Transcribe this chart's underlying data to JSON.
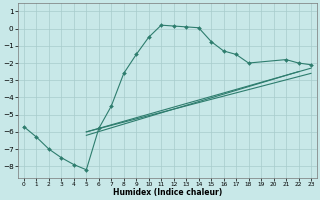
{
  "xlabel": "Humidex (Indice chaleur)",
  "xlim": [
    -0.5,
    23.5
  ],
  "ylim": [
    -8.7,
    1.5
  ],
  "xtick_vals": [
    0,
    1,
    2,
    3,
    4,
    5,
    6,
    7,
    8,
    9,
    10,
    11,
    12,
    13,
    14,
    15,
    16,
    17,
    18,
    19,
    20,
    21,
    22,
    23
  ],
  "ytick_vals": [
    1,
    0,
    -1,
    -2,
    -3,
    -4,
    -5,
    -6,
    -7,
    -8
  ],
  "line_color": "#2e7d6e",
  "bg_color": "#c8e8e8",
  "grid_color": "#a8cccc",
  "main_x": [
    0,
    1,
    2,
    3,
    4,
    5,
    6,
    7,
    8,
    9,
    10,
    11,
    12,
    13,
    14,
    15,
    16,
    17,
    18,
    21,
    22,
    23
  ],
  "main_y": [
    -5.7,
    -6.3,
    -7.0,
    -7.5,
    -7.9,
    -8.2,
    -5.8,
    -4.5,
    -2.6,
    -1.5,
    -0.5,
    0.2,
    0.15,
    0.1,
    0.05,
    -0.75,
    -1.3,
    -1.5,
    -2.0,
    -1.8,
    -2.0,
    -2.1
  ],
  "line1_x": [
    5,
    23
  ],
  "line1_y": [
    -6.0,
    -2.6
  ],
  "line2_x": [
    5,
    23
  ],
  "line2_y": [
    -6.0,
    -2.3
  ],
  "line3_x": [
    5,
    22
  ],
  "line3_y": [
    -6.2,
    -2.5
  ]
}
